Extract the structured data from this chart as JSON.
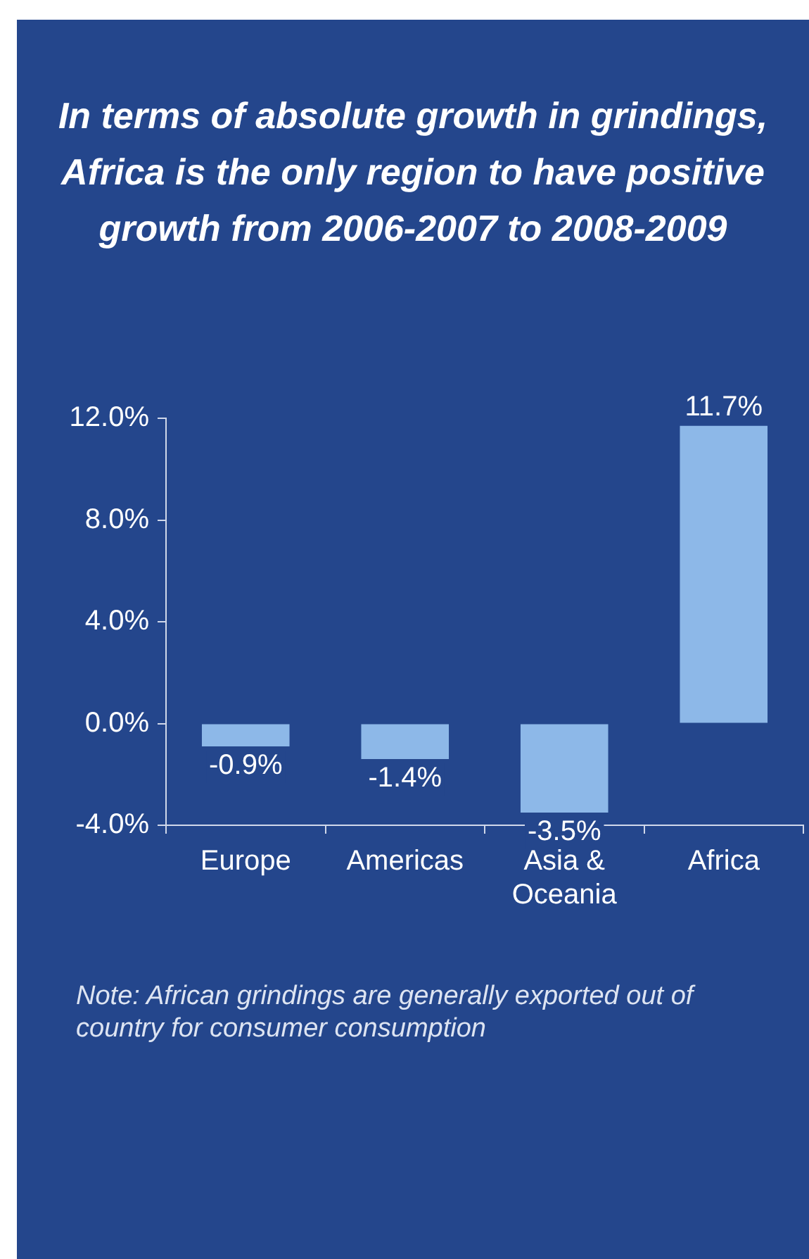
{
  "chart_data": {
    "type": "bar",
    "title": "In terms of absolute growth in grindings, Africa is the only region to have positive growth from 2006-2007 to 2008-2009",
    "categories": [
      "Europe",
      "Americas",
      "Asia & Oceania",
      "Africa"
    ],
    "values": [
      -0.9,
      -1.4,
      -3.5,
      11.7
    ],
    "value_labels": [
      "-0.9%",
      "-1.4%",
      "-3.5%",
      "11.7%"
    ],
    "color": "#8db8e8",
    "ylim": [
      -4,
      12
    ],
    "yticks": [
      {
        "value": -4,
        "label": "-4.0%"
      },
      {
        "value": 0,
        "label": "0.0%"
      },
      {
        "value": 4,
        "label": "4.0%"
      },
      {
        "value": 8,
        "label": "8.0%"
      },
      {
        "value": 12,
        "label": "12.0%"
      }
    ],
    "grid": false,
    "legend": false,
    "annotations": [
      "Note:  African grindings are generally exported out of country for consumer consumption"
    ]
  }
}
